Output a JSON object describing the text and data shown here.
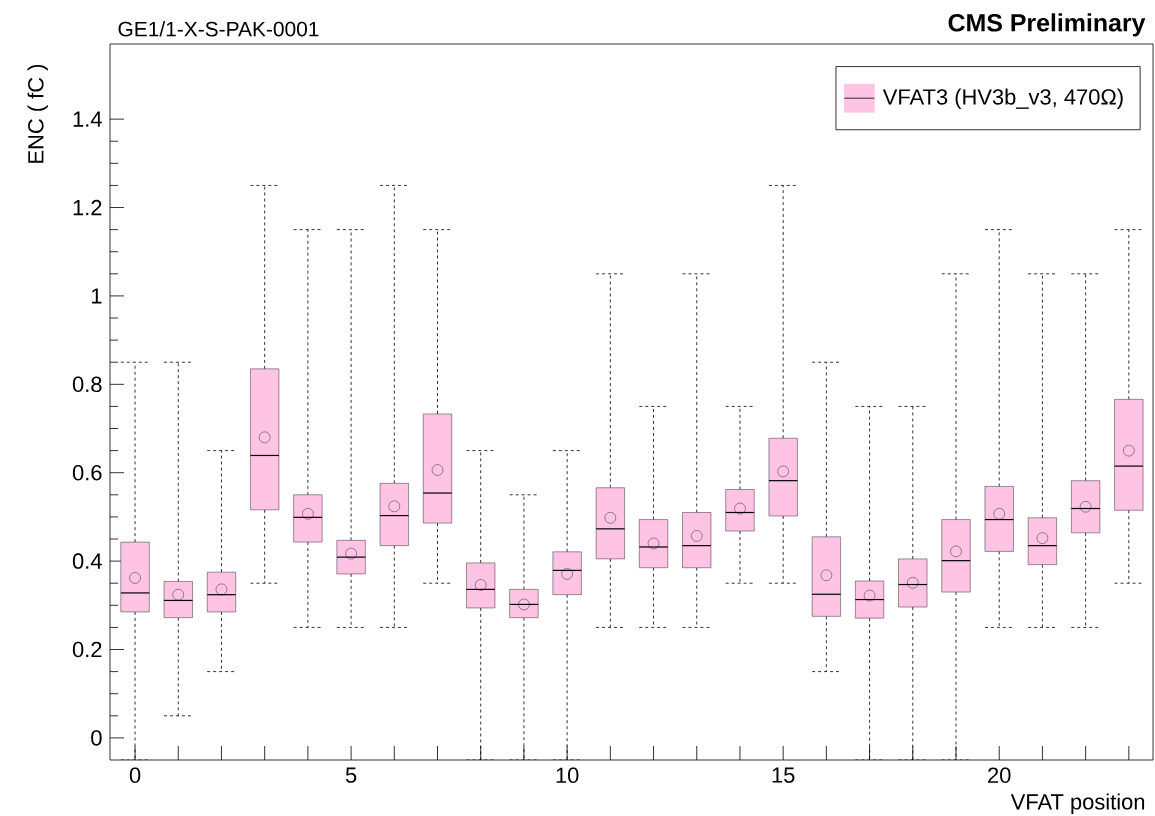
{
  "chart_data": {
    "type": "box",
    "title": "GE1/1-X-S-PAK-0001",
    "subtitle": "CMS Preliminary",
    "xlabel": "VFAT position",
    "ylabel": "ENC ( fC )",
    "categories": [
      "0",
      null,
      null,
      null,
      null,
      "5",
      null,
      null,
      null,
      null,
      "10",
      null,
      null,
      null,
      null,
      "15",
      null,
      null,
      null,
      null,
      "20",
      null,
      null,
      null
    ],
    "ylim": [
      -0.05,
      1.57
    ],
    "yticks": [
      0,
      0.2,
      0.4,
      0.6,
      0.8,
      1,
      1.2,
      1.4
    ],
    "legend": "top right",
    "grid": false,
    "marker": "circle",
    "series": [
      {
        "name": "VFAT3 (HV3b_v3, 470Ω)",
        "color": "#ffc4e4",
        "boxes": [
          {
            "low": -0.05,
            "q1": 0.285,
            "median": 0.328,
            "q3": 0.443,
            "high": 0.85,
            "mean": 0.362
          },
          {
            "low": 0.05,
            "q1": 0.272,
            "median": 0.311,
            "q3": 0.354,
            "high": 0.85,
            "mean": 0.324
          },
          {
            "low": 0.15,
            "q1": 0.285,
            "median": 0.324,
            "q3": 0.375,
            "high": 0.65,
            "mean": 0.336
          },
          {
            "low": 0.35,
            "q1": 0.516,
            "median": 0.639,
            "q3": 0.835,
            "high": 1.25,
            "mean": 0.68
          },
          {
            "low": 0.25,
            "q1": 0.443,
            "median": 0.499,
            "q3": 0.55,
            "high": 1.15,
            "mean": 0.507
          },
          {
            "low": 0.25,
            "q1": 0.371,
            "median": 0.409,
            "q3": 0.447,
            "high": 1.15,
            "mean": 0.417
          },
          {
            "low": 0.25,
            "q1": 0.435,
            "median": 0.503,
            "q3": 0.576,
            "high": 1.25,
            "mean": 0.524
          },
          {
            "low": 0.35,
            "q1": 0.486,
            "median": 0.554,
            "q3": 0.733,
            "high": 1.15,
            "mean": 0.606
          },
          {
            "low": -0.05,
            "q1": 0.294,
            "median": 0.336,
            "q3": 0.396,
            "high": 0.65,
            "mean": 0.346
          },
          {
            "low": -0.05,
            "q1": 0.272,
            "median": 0.302,
            "q3": 0.336,
            "high": 0.55,
            "mean": 0.302
          },
          {
            "low": -0.05,
            "q1": 0.324,
            "median": 0.379,
            "q3": 0.421,
            "high": 0.65,
            "mean": 0.371
          },
          {
            "low": 0.25,
            "q1": 0.405,
            "median": 0.473,
            "q3": 0.566,
            "high": 1.05,
            "mean": 0.498
          },
          {
            "low": 0.25,
            "q1": 0.385,
            "median": 0.432,
            "q3": 0.494,
            "high": 0.75,
            "mean": 0.44
          },
          {
            "low": 0.25,
            "q1": 0.385,
            "median": 0.435,
            "q3": 0.51,
            "high": 1.05,
            "mean": 0.457
          },
          {
            "low": 0.35,
            "q1": 0.468,
            "median": 0.51,
            "q3": 0.562,
            "high": 0.75,
            "mean": 0.519
          },
          {
            "low": 0.35,
            "q1": 0.502,
            "median": 0.582,
            "q3": 0.678,
            "high": 1.25,
            "mean": 0.603
          },
          {
            "low": 0.15,
            "q1": 0.275,
            "median": 0.325,
            "q3": 0.455,
            "high": 0.85,
            "mean": 0.368
          },
          {
            "low": -0.05,
            "q1": 0.271,
            "median": 0.313,
            "q3": 0.355,
            "high": 0.75,
            "mean": 0.322
          },
          {
            "low": -0.05,
            "q1": 0.296,
            "median": 0.347,
            "q3": 0.405,
            "high": 0.75,
            "mean": 0.351
          },
          {
            "low": -0.05,
            "q1": 0.33,
            "median": 0.401,
            "q3": 0.494,
            "high": 1.05,
            "mean": 0.422
          },
          {
            "low": 0.25,
            "q1": 0.422,
            "median": 0.494,
            "q3": 0.569,
            "high": 1.15,
            "mean": 0.507
          },
          {
            "low": 0.25,
            "q1": 0.392,
            "median": 0.435,
            "q3": 0.498,
            "high": 1.05,
            "mean": 0.452
          },
          {
            "low": 0.25,
            "q1": 0.464,
            "median": 0.519,
            "q3": 0.582,
            "high": 1.05,
            "mean": 0.523
          },
          {
            "low": 0.35,
            "q1": 0.515,
            "median": 0.615,
            "q3": 0.766,
            "high": 1.15,
            "mean": 0.65
          }
        ]
      }
    ]
  }
}
